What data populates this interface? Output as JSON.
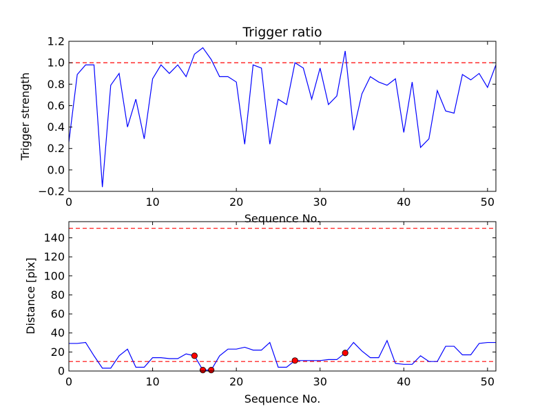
{
  "chart_data": [
    {
      "type": "line",
      "title": "Trigger ratio",
      "xlabel": "Sequence No.",
      "ylabel": "Trigger strength",
      "xlim": [
        0,
        51
      ],
      "ylim": [
        -0.2,
        1.2
      ],
      "xticks": [
        0,
        10,
        20,
        30,
        40,
        50
      ],
      "yticks": [
        -0.2,
        0.0,
        0.2,
        0.4,
        0.6,
        0.8,
        1.0,
        1.2
      ],
      "line_color": "#0000ff",
      "reference_lines": [
        {
          "y": 1.0,
          "color": "#ff0000",
          "style": "dashed"
        }
      ],
      "x": [
        0,
        1,
        2,
        3,
        4,
        5,
        6,
        7,
        8,
        9,
        10,
        11,
        12,
        13,
        14,
        15,
        16,
        17,
        18,
        19,
        20,
        21,
        22,
        23,
        24,
        25,
        26,
        27,
        28,
        29,
        30,
        31,
        32,
        33,
        34,
        35,
        36,
        37,
        38,
        39,
        40,
        41,
        42,
        43,
        44,
        45,
        46,
        47,
        48,
        49,
        50,
        51
      ],
      "values": [
        0.26,
        0.89,
        0.98,
        0.98,
        -0.16,
        0.79,
        0.9,
        0.4,
        0.66,
        0.29,
        0.85,
        0.98,
        0.9,
        0.98,
        0.87,
        1.08,
        1.14,
        1.03,
        0.87,
        0.87,
        0.82,
        0.24,
        0.98,
        0.95,
        0.24,
        0.66,
        0.61,
        1.0,
        0.95,
        0.66,
        0.95,
        0.61,
        0.69,
        1.11,
        0.37,
        0.71,
        0.87,
        0.82,
        0.79,
        0.85,
        0.35,
        0.82,
        0.21,
        0.29,
        0.74,
        0.55,
        0.53,
        0.89,
        0.84,
        0.9,
        0.77,
        0.98
      ]
    },
    {
      "type": "line",
      "title": "",
      "xlabel": "Sequence No.",
      "ylabel": "Distance [pix]",
      "xlim": [
        0,
        51
      ],
      "ylim": [
        0,
        157
      ],
      "xticks": [
        0,
        10,
        20,
        30,
        40,
        50
      ],
      "yticks": [
        0,
        20,
        40,
        60,
        80,
        100,
        120,
        140
      ],
      "line_color": "#0000ff",
      "marker_color": "#ff0000",
      "reference_lines": [
        {
          "y": 150,
          "color": "#ff0000",
          "style": "dashed"
        },
        {
          "y": 10,
          "color": "#ff0000",
          "style": "dashed"
        }
      ],
      "x": [
        0,
        1,
        2,
        3,
        4,
        5,
        6,
        7,
        8,
        9,
        10,
        11,
        12,
        13,
        14,
        15,
        16,
        17,
        18,
        19,
        20,
        21,
        22,
        23,
        24,
        25,
        26,
        27,
        28,
        29,
        30,
        31,
        32,
        33,
        34,
        35,
        36,
        37,
        38,
        39,
        40,
        41,
        42,
        43,
        44,
        45,
        46,
        47,
        48,
        49,
        50,
        51
      ],
      "values": [
        29,
        29,
        30,
        16,
        3,
        3,
        16,
        23,
        4,
        4,
        14,
        14,
        13,
        13,
        18,
        16,
        1,
        1,
        16,
        23,
        23,
        25,
        22,
        22,
        30,
        4,
        4,
        11,
        11,
        11,
        11,
        12,
        12,
        19,
        30,
        21,
        14,
        14,
        32,
        8,
        7,
        7,
        16,
        10,
        10,
        26,
        26,
        17,
        17,
        29,
        30,
        30
      ],
      "markers": [
        {
          "x": 15,
          "y": 16
        },
        {
          "x": 16,
          "y": 1
        },
        {
          "x": 17,
          "y": 1
        },
        {
          "x": 27,
          "y": 11
        },
        {
          "x": 33,
          "y": 19
        }
      ]
    }
  ]
}
